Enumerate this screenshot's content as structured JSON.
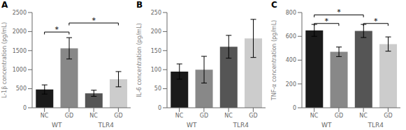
{
  "chart_data": [
    {
      "type": "bar",
      "title": "A",
      "ylabel": "L-1β concentration (pg/mL)",
      "categories": [
        "NC",
        "GD",
        "NC",
        "GD"
      ],
      "group_labels": [
        "WT",
        "TLR4"
      ],
      "values": [
        480,
        1560,
        380,
        750
      ],
      "errors": [
        120,
        280,
        80,
        200
      ],
      "colors": [
        "#1a1a1a",
        "#888888",
        "#555555",
        "#cccccc"
      ],
      "ylim": [
        0,
        2500
      ],
      "yticks": [
        0,
        500,
        1000,
        1500,
        2000,
        2500
      ],
      "annotations": [
        {
          "x1": 0,
          "x2": 1,
          "y": 1925,
          "label": "*"
        },
        {
          "x1": 1,
          "x2": 3,
          "y": 2162.5,
          "label": "*"
        }
      ]
    },
    {
      "type": "bar",
      "title": "B",
      "ylabel": "IL-6 concentration (pg/mL)",
      "categories": [
        "NC",
        "GD",
        "NC",
        "GD"
      ],
      "group_labels": [
        "WT",
        "TLR4"
      ],
      "values": [
        95,
        100,
        160,
        182
      ],
      "errors": [
        20,
        35,
        30,
        50
      ],
      "colors": [
        "#1a1a1a",
        "#888888",
        "#555555",
        "#cccccc"
      ],
      "ylim": [
        0,
        250
      ],
      "yticks": [
        0,
        50,
        100,
        150,
        200,
        250
      ],
      "annotations": []
    },
    {
      "type": "bar",
      "title": "C",
      "ylabel": "TNF-α concentration (pg/mL)",
      "categories": [
        "NC",
        "GD",
        "NC",
        "GD"
      ],
      "group_labels": [
        "WT",
        "TLR4"
      ],
      "values": [
        650,
        470,
        645,
        535
      ],
      "errors": [
        50,
        40,
        55,
        60
      ],
      "colors": [
        "#1a1a1a",
        "#888888",
        "#555555",
        "#cccccc"
      ],
      "ylim": [
        0,
        800
      ],
      "yticks": [
        0,
        200,
        400,
        600,
        800
      ],
      "annotations": [
        {
          "x1": 0,
          "x2": 1,
          "y": 688,
          "label": "*"
        },
        {
          "x1": 2,
          "x2": 3,
          "y": 688,
          "label": "*"
        },
        {
          "x1": 0,
          "x2": 2,
          "y": 760,
          "label": "*"
        }
      ]
    }
  ]
}
